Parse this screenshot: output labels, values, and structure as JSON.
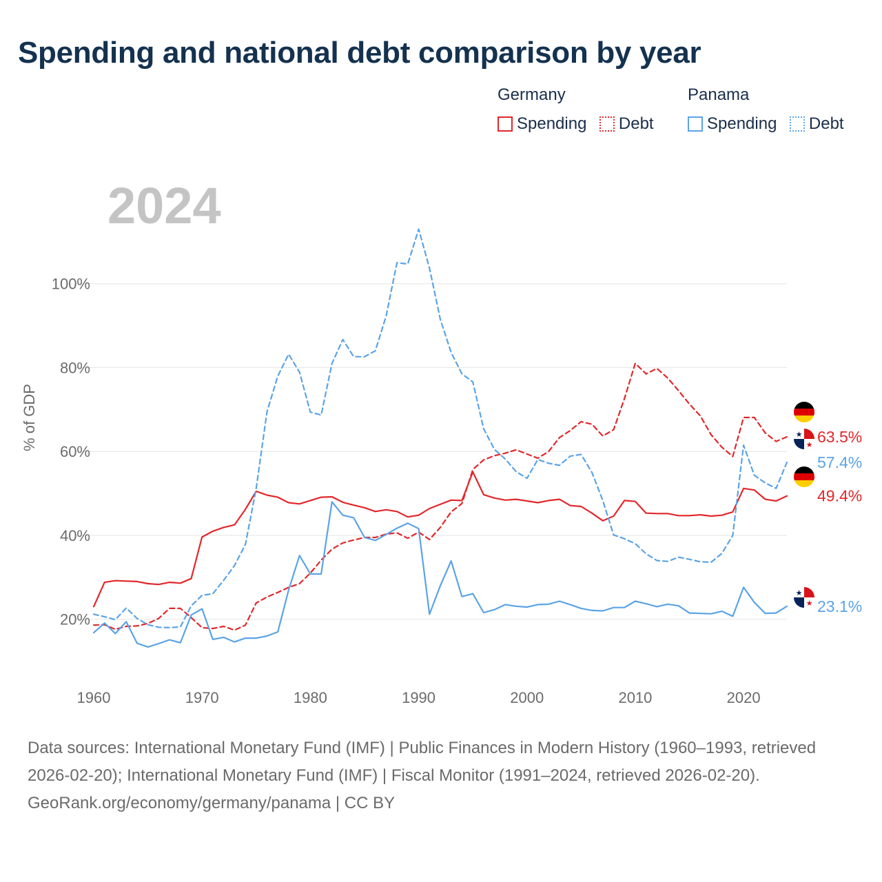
{
  "title": "Spending and national debt comparison by year",
  "year_label": "2024",
  "legend": {
    "groups": [
      {
        "name": "Germany",
        "items": [
          "Spending",
          "Debt"
        ]
      },
      {
        "name": "Panama",
        "items": [
          "Spending",
          "Debt"
        ]
      }
    ]
  },
  "colors": {
    "germany": "#e3262a",
    "panama": "#5aa3e6",
    "axis_text": "#6b6b6b",
    "year_watermark": "#c4c4c4",
    "grid": "#e6e6e6",
    "title": "#14324f"
  },
  "chart_data": {
    "type": "line",
    "title": "Spending and national debt comparison by year",
    "ylabel": "% of GDP",
    "xlabel": "",
    "xlim": [
      1960,
      2024
    ],
    "ylim": [
      5,
      120
    ],
    "x_ticks": [
      1960,
      1970,
      1980,
      1990,
      2000,
      2010,
      2020
    ],
    "y_ticks": [
      20,
      40,
      60,
      80,
      100
    ],
    "y_tick_labels": [
      "20%",
      "40%",
      "60%",
      "80%",
      "100%"
    ],
    "grid": true,
    "series": [
      {
        "name": "Germany Spending",
        "country": "Germany",
        "measure": "Spending",
        "style": "solid",
        "color": "#e3262a",
        "start_year": 1960,
        "values": [
          23.0,
          28.8,
          29.2,
          29.1,
          29.0,
          28.5,
          28.3,
          28.8,
          28.6,
          29.7,
          39.6,
          41.0,
          41.9,
          42.5,
          46.2,
          50.5,
          49.6,
          49.1,
          47.8,
          47.5,
          48.3,
          49.1,
          49.2,
          47.9,
          47.2,
          46.6,
          45.7,
          46.1,
          45.7,
          44.4,
          44.8,
          46.4,
          47.4,
          48.4,
          48.3,
          55.1,
          49.7,
          48.9,
          48.4,
          48.6,
          48.2,
          47.8,
          48.3,
          48.6,
          47.1,
          46.9,
          45.3,
          43.5,
          44.6,
          48.3,
          48.1,
          45.3,
          45.2,
          45.2,
          44.7,
          44.7,
          44.9,
          44.6,
          44.8,
          45.6,
          51.2,
          50.8,
          48.6,
          48.2,
          49.4
        ],
        "end_label": "49.4%"
      },
      {
        "name": "Germany Debt",
        "country": "Germany",
        "measure": "Debt",
        "style": "dashed",
        "color": "#e3262a",
        "start_year": 1960,
        "values": [
          18.6,
          18.7,
          17.6,
          18.3,
          18.4,
          19.0,
          20.2,
          22.6,
          22.6,
          20.4,
          18.0,
          17.8,
          18.3,
          17.4,
          18.6,
          23.9,
          25.3,
          26.4,
          27.6,
          28.5,
          31.0,
          34.1,
          36.7,
          38.2,
          38.9,
          39.5,
          39.5,
          40.3,
          40.6,
          39.3,
          40.8,
          39.0,
          41.9,
          45.6,
          47.6,
          55.7,
          58.0,
          59.0,
          59.6,
          60.4,
          59.4,
          58.4,
          60.0,
          63.3,
          65.0,
          67.1,
          66.5,
          63.7,
          65.2,
          72.6,
          81.0,
          78.5,
          79.8,
          77.5,
          74.5,
          71.3,
          68.5,
          64.0,
          61.0,
          58.8,
          68.1,
          68.1,
          64.4,
          62.4,
          63.5
        ],
        "end_label": "63.5%"
      },
      {
        "name": "Panama Spending",
        "country": "Panama",
        "measure": "Spending",
        "style": "solid",
        "color": "#5aa3e6",
        "start_year": 1960,
        "values": [
          16.8,
          19.1,
          16.6,
          19.4,
          14.3,
          13.4,
          14.2,
          15.1,
          14.4,
          21.0,
          22.5,
          15.2,
          15.7,
          14.6,
          15.5,
          15.5,
          16.0,
          17.0,
          27.0,
          35.2,
          30.8,
          30.8,
          48.0,
          44.8,
          44.2,
          39.5,
          38.8,
          40.2,
          41.7,
          42.9,
          41.6,
          21.2,
          28.0,
          33.9,
          25.4,
          26.1,
          21.6,
          22.3,
          23.5,
          23.1,
          22.9,
          23.5,
          23.6,
          24.3,
          23.5,
          22.6,
          22.1,
          22.0,
          22.8,
          22.8,
          24.3,
          23.7,
          23.0,
          23.6,
          23.2,
          21.5,
          21.4,
          21.3,
          21.9,
          20.7,
          27.6,
          24.0,
          21.4,
          21.5,
          23.1
        ],
        "end_label": "23.1%"
      },
      {
        "name": "Panama Debt",
        "country": "Panama",
        "measure": "Debt",
        "style": "dashed",
        "color": "#5aa3e6",
        "start_year": 1960,
        "values": [
          21.2,
          20.6,
          19.9,
          22.7,
          20.2,
          18.7,
          18.1,
          18.0,
          18.2,
          23.2,
          25.7,
          26.1,
          29.3,
          32.8,
          37.8,
          51.2,
          69.5,
          78.0,
          83.2,
          78.9,
          69.4,
          68.7,
          81.0,
          86.7,
          82.6,
          82.6,
          84.0,
          92.3,
          105.0,
          104.7,
          113.0,
          103.7,
          91.5,
          83.6,
          78.5,
          76.6,
          65.4,
          60.5,
          58.2,
          55.2,
          53.6,
          58.1,
          57.2,
          56.7,
          58.9,
          59.3,
          55.0,
          48.3,
          40.1,
          39.2,
          38.0,
          35.6,
          34.0,
          33.8,
          34.8,
          34.3,
          33.7,
          33.6,
          35.7,
          40.0,
          61.5,
          54.3,
          52.5,
          51.2,
          57.4
        ],
        "end_label": "57.4%"
      }
    ]
  },
  "source": {
    "text": "Data sources: International Monetary Fund (IMF) | Public Finances in Modern History (1960–1993, retrieved 2026-02-20); International Monetary Fund (IMF) | Fiscal Monitor (1991–2024, retrieved 2026-02-20).",
    "credit": "GeoRank.org/economy/germany/panama | CC BY"
  }
}
